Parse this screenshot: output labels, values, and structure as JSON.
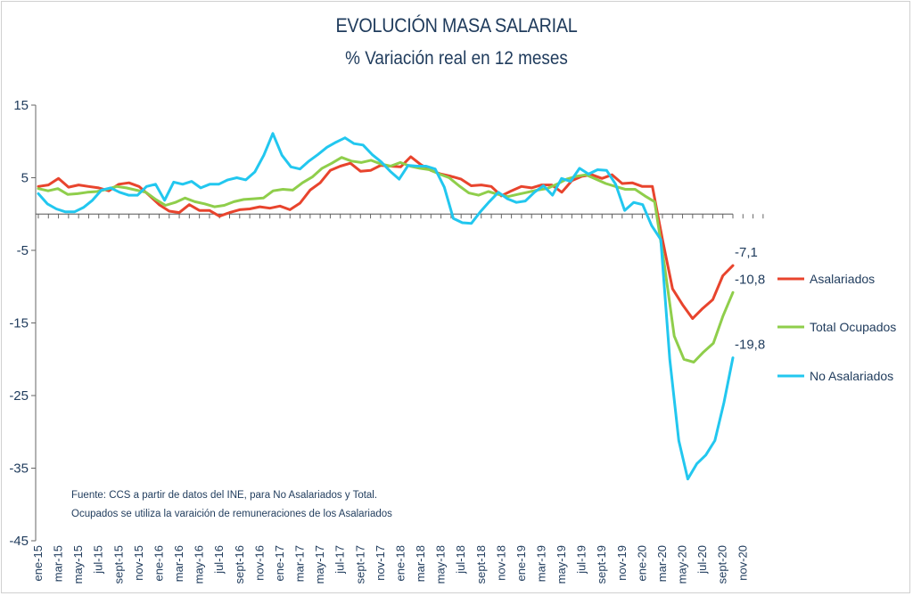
{
  "chart_data": {
    "type": "line",
    "title": "EVOLUCIÓN MASA SALARIAL",
    "subtitle": "% Variación real en 12 meses",
    "ylim": [
      -45,
      15
    ],
    "yticks": [
      15,
      5,
      -5,
      -15,
      -25,
      -35,
      -45
    ],
    "x_tick_labels": [
      "ene-15",
      "mar-15",
      "may-15",
      "jul-15",
      "sept-15",
      "nov-15",
      "ene-16",
      "mar-16",
      "may-16",
      "jul-16",
      "sept-16",
      "nov-16",
      "ene-17",
      "mar-17",
      "may-17",
      "jul-17",
      "sept-17",
      "nov-17",
      "ene-18",
      "mar-18",
      "may-18",
      "jul-18",
      "sept-18",
      "nov-18",
      "ene-19",
      "mar-19",
      "may-19",
      "jul-19",
      "sept-19",
      "nov-19",
      "ene-20",
      "mar-20",
      "may-20",
      "jul-20",
      "sept-20",
      "nov-20"
    ],
    "legend_position": "right",
    "series": [
      {
        "name": "Asalariados",
        "color": "#e8442d",
        "end_label": "-7,1",
        "values": [
          3.8,
          4,
          4.9,
          3.7,
          4,
          3.8,
          3.6,
          3.2,
          4.1,
          4.3,
          3.8,
          2.6,
          1.3,
          0.4,
          0.2,
          1.3,
          0.5,
          0.5,
          -0.3,
          0.2,
          0.6,
          0.7,
          1,
          0.8,
          1.1,
          0.6,
          1.5,
          3.3,
          4.3,
          6,
          6.6,
          7,
          5.9,
          6,
          6.7,
          6.6,
          6.5,
          7.9,
          6.8,
          6,
          5.5,
          5.2,
          4.8,
          3.9,
          4,
          3.8,
          2.5,
          3.2,
          3.8,
          3.6,
          4,
          4,
          3,
          4.6,
          5.2,
          5.4,
          4.9,
          5.4,
          4.2,
          4.3,
          3.8,
          3.8,
          -3.5,
          -10.3,
          -12.5,
          -14.4,
          -13,
          -11.8,
          -8.5,
          -7.1
        ]
      },
      {
        "name": "Total Ocupados",
        "color": "#8fce4b",
        "end_label": "-10,8",
        "values": [
          3.5,
          3.2,
          3.5,
          2.7,
          2.8,
          3,
          3.1,
          3.4,
          3.8,
          3.6,
          3.3,
          3,
          2,
          1.2,
          1.6,
          2.2,
          1.7,
          1.4,
          1,
          1.2,
          1.7,
          2,
          2.1,
          2.2,
          3.2,
          3.4,
          3.3,
          4.3,
          5.1,
          6.3,
          7,
          7.8,
          7.3,
          7.1,
          7.4,
          6.9,
          6.6,
          7.1,
          6.6,
          6.3,
          6.1,
          5.5,
          5,
          3.9,
          2.9,
          2.6,
          3.1,
          2.7,
          2.4,
          2.7,
          3,
          3.3,
          3.5,
          4.1,
          4.8,
          5.2,
          5.4,
          4.8,
          4.2,
          3.8,
          3.4,
          3.4,
          2.5,
          1.7,
          -7,
          -16.8,
          -20,
          -20.4,
          -19,
          -17.8,
          -14,
          -10.8
        ]
      },
      {
        "name": "No Asalariados",
        "color": "#22c7ef",
        "end_label": "-19,8",
        "values": [
          2.8,
          1.4,
          0.7,
          0.3,
          0.3,
          0.9,
          1.9,
          3.3,
          3.6,
          3,
          2.6,
          2.6,
          3.8,
          4.1,
          1.9,
          4.4,
          4.1,
          4.5,
          3.6,
          4.1,
          4.1,
          4.7,
          5,
          4.7,
          5.8,
          8.1,
          11.1,
          8.1,
          6.5,
          6.2,
          7.3,
          8.2,
          9.2,
          9.9,
          10.5,
          9.7,
          9.5,
          8.2,
          7.2,
          5.9,
          4.8,
          6.7,
          6.6,
          6.6,
          6.2,
          3.7,
          -0.6,
          -1.2,
          -1.3,
          0.3,
          1.7,
          3,
          2.1,
          1.6,
          1.8,
          3,
          3.9,
          2.6,
          4.9,
          4.5,
          6.3,
          5.5,
          6.1,
          6,
          4.1,
          0.5,
          1.6,
          1.3,
          -1.6,
          -3.5,
          -20,
          -31.2,
          -36.5,
          -34.4,
          -33.2,
          -31.2,
          -26,
          -19.8
        ]
      }
    ]
  },
  "footnote": {
    "line1": "Fuente: CCS a partir de datos del INE, para No Asalariados y Total.",
    "line2": "Ocupados se utiliza la varaición de remuneraciones de los Asalariados"
  }
}
